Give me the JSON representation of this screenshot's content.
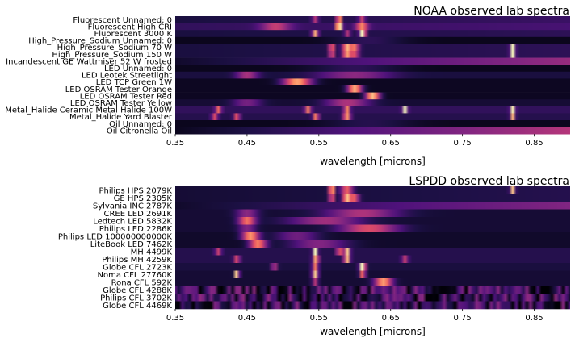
{
  "chart_data": [
    {
      "type": "heatmap",
      "title": "NOAA observed lab spectra",
      "xlabel": "wavelength [microns]",
      "ylabel": "",
      "xlim": [
        0.35,
        0.9
      ],
      "xticks": [
        "0.35",
        "0.45",
        "0.55",
        "0.65",
        "0.75",
        "0.85"
      ],
      "xtick_values": [
        0.35,
        0.45,
        0.55,
        0.65,
        0.75,
        0.85
      ],
      "colormap": "magma",
      "rows": [
        {
          "label": "Fluorescent Unnamed: 0",
          "base": 0.12,
          "ramp": 0.08,
          "peaks": [
            [
              0.578,
              0.9,
              0.003
            ],
            [
              0.545,
              0.35,
              0.004
            ],
            [
              0.61,
              0.4,
              0.004
            ]
          ]
        },
        {
          "label": "Fluorescent High CRI",
          "base": 0.18,
          "ramp": 0.05,
          "peaks": [
            [
              0.49,
              0.35,
              0.02
            ],
            [
              0.578,
              0.95,
              0.004
            ],
            [
              0.61,
              0.55,
              0.008
            ]
          ]
        },
        {
          "label": "Fluorescent 3000 K",
          "base": 0.12,
          "ramp": 0.05,
          "peaks": [
            [
              0.545,
              0.7,
              0.004
            ],
            [
              0.611,
              0.95,
              0.004
            ],
            [
              0.59,
              0.35,
              0.004
            ]
          ]
        },
        {
          "label": "High_Pressure_Sodium Unnamed: 0",
          "base": 0.05,
          "ramp": 0.0,
          "peaks": [
            [
              0.62,
              0.12,
              0.05
            ]
          ]
        },
        {
          "label": "High_Pressure_Sodium 70 W",
          "base": 0.12,
          "ramp": 0.05,
          "peaks": [
            [
              0.568,
              0.6,
              0.004
            ],
            [
              0.589,
              0.7,
              0.006
            ],
            [
              0.6,
              0.55,
              0.006
            ],
            [
              0.82,
              0.95,
              0.003
            ]
          ]
        },
        {
          "label": "High_Pressure_Sodium 150 W",
          "base": 0.12,
          "ramp": 0.05,
          "peaks": [
            [
              0.568,
              0.5,
              0.004
            ],
            [
              0.589,
              0.65,
              0.006
            ],
            [
              0.6,
              0.45,
              0.006
            ],
            [
              0.82,
              0.95,
              0.003
            ]
          ]
        },
        {
          "label": "Incandescent GE Wattmiser 52 W frosted",
          "base": 0.08,
          "ramp": 0.35,
          "peaks": []
        },
        {
          "label": "LED Unnamed: 0",
          "base": 0.05,
          "ramp": 0.0,
          "peaks": [
            [
              0.6,
              0.12,
              0.06
            ]
          ]
        },
        {
          "label": "LED Leotek Streetlight",
          "base": 0.12,
          "ramp": 0.0,
          "peaks": [
            [
              0.45,
              0.35,
              0.015
            ],
            [
              0.6,
              0.28,
              0.05
            ]
          ]
        },
        {
          "label": "LED TCP Green 1W",
          "base": 0.06,
          "ramp": 0.0,
          "peaks": [
            [
              0.52,
              0.75,
              0.02
            ]
          ]
        },
        {
          "label": "LED OSRAM Tester Orange",
          "base": 0.06,
          "ramp": 0.0,
          "peaks": [
            [
              0.6,
              0.78,
              0.01
            ]
          ]
        },
        {
          "label": "LED OSRAM Tester Red",
          "base": 0.06,
          "ramp": 0.0,
          "peaks": [
            [
              0.625,
              0.82,
              0.01
            ]
          ]
        },
        {
          "label": "LED OSRAM Tester Yellow",
          "base": 0.1,
          "ramp": 0.0,
          "peaks": [
            [
              0.59,
              0.38,
              0.03
            ],
            [
              0.45,
              0.25,
              0.02
            ]
          ]
        },
        {
          "label": "Metal_Halide Ceramic Metal Halide 100W",
          "base": 0.18,
          "ramp": 0.0,
          "peaks": [
            [
              0.41,
              0.5,
              0.004
            ],
            [
              0.535,
              0.55,
              0.004
            ],
            [
              0.589,
              0.6,
              0.004
            ],
            [
              0.67,
              0.9,
              0.003
            ],
            [
              0.82,
              0.8,
              0.003
            ]
          ]
        },
        {
          "label": "Metal_Halide Yard Blaster",
          "base": 0.15,
          "ramp": 0.0,
          "peaks": [
            [
              0.405,
              0.45,
              0.004
            ],
            [
              0.436,
              0.5,
              0.004
            ],
            [
              0.546,
              0.6,
              0.004
            ],
            [
              0.589,
              0.65,
              0.005
            ],
            [
              0.82,
              0.7,
              0.003
            ]
          ]
        },
        {
          "label": "Oil Unnamed: 0",
          "base": 0.05,
          "ramp": 0.0,
          "peaks": [
            [
              0.62,
              0.1,
              0.06
            ]
          ]
        },
        {
          "label": "Oil Citronella Oil",
          "base": 0.05,
          "ramp": 0.45,
          "peaks": []
        }
      ]
    },
    {
      "type": "heatmap",
      "title": "LSPDD observed lab spectra",
      "xlabel": "wavelength [microns]",
      "ylabel": "",
      "xlim": [
        0.35,
        0.9
      ],
      "xticks": [
        "0.35",
        "0.45",
        "0.55",
        "0.65",
        "0.75",
        "0.85"
      ],
      "xtick_values": [
        0.35,
        0.45,
        0.55,
        0.65,
        0.75,
        0.85
      ],
      "colormap": "magma",
      "rows": [
        {
          "label": "Philips HPS 2079K",
          "base": 0.1,
          "ramp": 0.05,
          "peaks": [
            [
              0.568,
              0.8,
              0.004
            ],
            [
              0.589,
              0.55,
              0.008
            ],
            [
              0.82,
              0.75,
              0.003
            ]
          ]
        },
        {
          "label": "GE HPS 2305K",
          "base": 0.1,
          "ramp": 0.05,
          "peaks": [
            [
              0.568,
              0.55,
              0.004
            ],
            [
              0.589,
              0.75,
              0.006
            ],
            [
              0.6,
              0.5,
              0.006
            ]
          ]
        },
        {
          "label": "Sylvania INC 2787K",
          "base": 0.08,
          "ramp": 0.3,
          "peaks": []
        },
        {
          "label": "CREE LED 2691K",
          "base": 0.1,
          "ramp": 0.0,
          "peaks": [
            [
              0.45,
              0.3,
              0.015
            ],
            [
              0.61,
              0.38,
              0.05
            ]
          ]
        },
        {
          "label": "Ledtech LED 5832K",
          "base": 0.1,
          "ramp": 0.0,
          "peaks": [
            [
              0.45,
              0.6,
              0.012
            ],
            [
              0.56,
              0.35,
              0.05
            ]
          ]
        },
        {
          "label": "Philips LED 2286K",
          "base": 0.1,
          "ramp": 0.0,
          "peaks": [
            [
              0.45,
              0.28,
              0.012
            ],
            [
              0.62,
              0.5,
              0.04
            ]
          ]
        },
        {
          "label": "Philips LED 100000000000K",
          "base": 0.08,
          "ramp": 0.0,
          "peaks": [
            [
              0.455,
              0.7,
              0.012
            ],
            [
              0.52,
              0.25,
              0.03
            ]
          ]
        },
        {
          "label": "LiteBook LED 7462K",
          "base": 0.08,
          "ramp": 0.0,
          "peaks": [
            [
              0.465,
              0.65,
              0.012
            ],
            [
              0.55,
              0.3,
              0.04
            ]
          ]
        },
        {
          "label": "- MH 4499K",
          "base": 0.15,
          "ramp": 0.0,
          "peaks": [
            [
              0.41,
              0.4,
              0.004
            ],
            [
              0.545,
              0.85,
              0.003
            ],
            [
              0.578,
              0.7,
              0.003
            ],
            [
              0.589,
              0.8,
              0.004
            ]
          ]
        },
        {
          "label": "Philips MH 4259K",
          "base": 0.15,
          "ramp": 0.0,
          "peaks": [
            [
              0.436,
              0.45,
              0.004
            ],
            [
              0.546,
              0.7,
              0.004
            ],
            [
              0.589,
              0.75,
              0.004
            ],
            [
              0.67,
              0.4,
              0.004
            ]
          ]
        },
        {
          "label": "Globe CFL 2723K",
          "base": 0.12,
          "ramp": 0.0,
          "peaks": [
            [
              0.488,
              0.4,
              0.004
            ],
            [
              0.545,
              0.6,
              0.004
            ],
            [
              0.611,
              0.95,
              0.004
            ]
          ]
        },
        {
          "label": "Noma CFL 27760K",
          "base": 0.1,
          "ramp": 0.0,
          "peaks": [
            [
              0.436,
              0.9,
              0.003
            ],
            [
              0.545,
              0.8,
              0.004
            ],
            [
              0.611,
              0.6,
              0.004
            ]
          ]
        },
        {
          "label": "Rona CFL 592K",
          "base": 0.1,
          "ramp": 0.0,
          "peaks": [
            [
              0.545,
              0.4,
              0.004
            ],
            [
              0.64,
              0.7,
              0.012
            ]
          ]
        },
        {
          "label": "Globe CFL 4288K",
          "base": 0.18,
          "ramp": 0.0,
          "noisy": true,
          "peaks": []
        },
        {
          "label": "Philips CFL 3702K",
          "base": 0.2,
          "ramp": 0.0,
          "noisy": true,
          "peaks": []
        },
        {
          "label": "Globe CFL 4469K",
          "base": 0.18,
          "ramp": 0.0,
          "noisy": true,
          "peaks": []
        }
      ]
    }
  ]
}
